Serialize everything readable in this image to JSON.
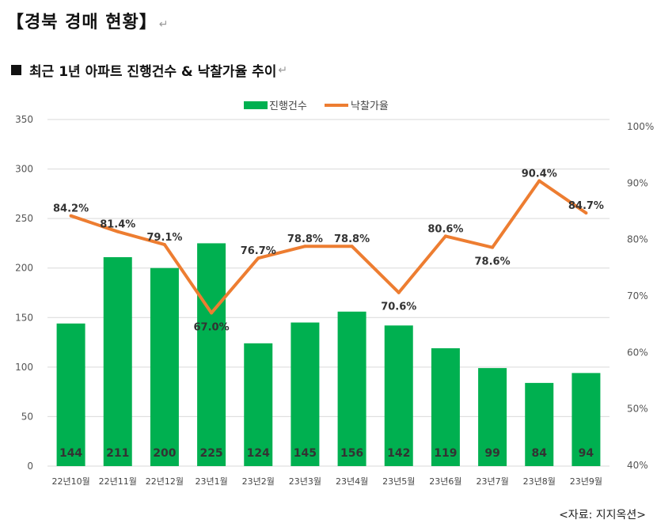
{
  "header": {
    "title": "【경북 경매 현황】",
    "return_mark": "↵"
  },
  "subheader": {
    "title": "최근 1년 아파트 진행건수 & 낙찰가율 추이",
    "return_mark": "↵"
  },
  "source": "<자료: 지지옥션>",
  "colors": {
    "bar": "#00b050",
    "line": "#ed7d31",
    "grid": "#d9d9d9"
  },
  "chart_data": {
    "type": "bar",
    "categories": [
      "22년10월",
      "22년11월",
      "22년12월",
      "23년1월",
      "23년2월",
      "23년3월",
      "23년4월",
      "23년5월",
      "23년6월",
      "23년7월",
      "23년8월",
      "23년9월"
    ],
    "series": [
      {
        "name": "진행건수",
        "type": "bar",
        "axis": "left",
        "values": [
          144,
          211,
          200,
          225,
          124,
          145,
          156,
          142,
          119,
          99,
          84,
          94
        ]
      },
      {
        "name": "낙찰가율",
        "type": "line",
        "axis": "right",
        "values": [
          84.2,
          81.4,
          79.1,
          67.0,
          76.7,
          78.8,
          78.8,
          70.6,
          80.6,
          78.6,
          90.4,
          84.7
        ],
        "labels": [
          "84.2%",
          "81.4%",
          "79.1%",
          "67.0%",
          "76.7%",
          "78.8%",
          "78.8%",
          "70.6%",
          "80.6%",
          "78.6%",
          "90.4%",
          "84.7%"
        ]
      }
    ],
    "y_left": {
      "ylim": [
        0,
        350
      ],
      "ticks": [
        "0",
        "50",
        "100",
        "150",
        "200",
        "250",
        "300",
        "350"
      ]
    },
    "y_right": {
      "ylim": [
        40,
        100
      ],
      "ticks": [
        "40%",
        "50%",
        "60%",
        "70%",
        "80%",
        "90%",
        "100%"
      ]
    },
    "legend": {
      "position": "top-center",
      "entries": [
        "진행건수",
        "낙찰가율"
      ]
    },
    "grid": true
  }
}
